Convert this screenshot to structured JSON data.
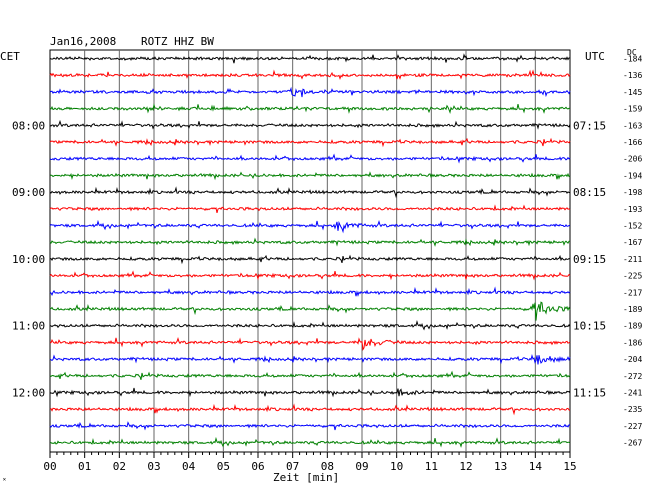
{
  "header": {
    "date": "Jan16,2008",
    "station": "ROTZ HHZ BW",
    "left_tz": "CET",
    "right_tz": "UTC",
    "dc_label": "DC"
  },
  "colors": {
    "trace_cycle": [
      "#000000",
      "#ff0000",
      "#0000ff",
      "#008000"
    ],
    "grid": "#000000"
  },
  "chart_data": {
    "type": "line",
    "xlabel": "Zeit [min]",
    "xlim": [
      0,
      15
    ],
    "x_ticks": [
      "00",
      "01",
      "02",
      "03",
      "04",
      "05",
      "06",
      "07",
      "08",
      "09",
      "10",
      "11",
      "12",
      "13",
      "14",
      "15"
    ],
    "left_time_labels": [
      {
        "trace_index": 4,
        "text": "08:00"
      },
      {
        "trace_index": 8,
        "text": "09:00"
      },
      {
        "trace_index": 12,
        "text": "10:00"
      },
      {
        "trace_index": 16,
        "text": "11:00"
      },
      {
        "trace_index": 20,
        "text": "12:00"
      }
    ],
    "right_time_labels": [
      {
        "trace_index": 4,
        "text": "07:15"
      },
      {
        "trace_index": 8,
        "text": "08:15"
      },
      {
        "trace_index": 12,
        "text": "09:15"
      },
      {
        "trace_index": 16,
        "text": "10:15"
      },
      {
        "trace_index": 20,
        "text": "11:15"
      }
    ],
    "dc_offsets": [
      "-184",
      "-136",
      "-145",
      "-159",
      "-163",
      "-166",
      "-206",
      "-194",
      "-198",
      "-193",
      "-152",
      "-167",
      "-211",
      "-225",
      "-217",
      "-189",
      "-189",
      "-186",
      "-204",
      "-272",
      "-241",
      "-235",
      "-227",
      "-267"
    ],
    "events": [
      {
        "trace_index": 15,
        "minute": 14.0,
        "amplitude": 9
      },
      {
        "trace_index": 17,
        "minute": 9.0,
        "amplitude": 7
      },
      {
        "trace_index": 18,
        "minute": 14.0,
        "amplitude": 6
      },
      {
        "trace_index": 10,
        "minute": 8.3,
        "amplitude": 4
      },
      {
        "trace_index": 20,
        "minute": 10.0,
        "amplitude": 3
      },
      {
        "trace_index": 2,
        "minute": 7.0,
        "amplitude": 3
      }
    ]
  },
  "footer": {
    "corner_mark": "˟"
  }
}
